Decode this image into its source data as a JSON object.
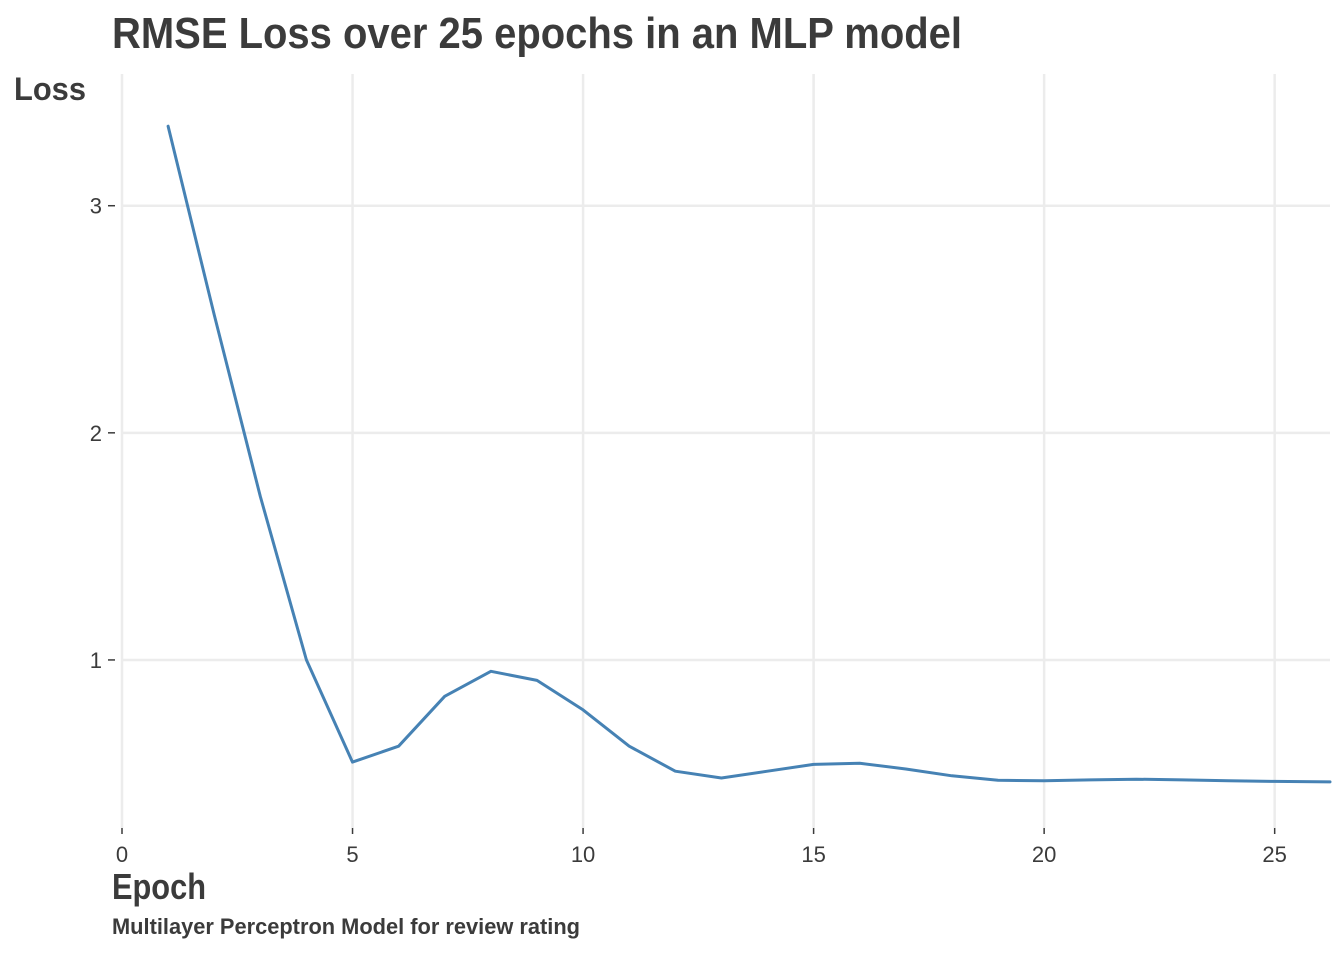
{
  "chart_data": {
    "type": "line",
    "title": "RMSE Loss over 25 epochs in an MLP model",
    "xlabel": "Epoch",
    "ylabel": "Loss",
    "caption": "Multilayer Perceptron Model for review rating",
    "xlim": [
      0,
      26.2
    ],
    "ylim": [
      0.26,
      3.58
    ],
    "x_ticks": [
      0,
      5,
      10,
      15,
      20,
      25
    ],
    "y_ticks": [
      1,
      2,
      3
    ],
    "grid": true,
    "line_color": "#4682b4",
    "grid_color": "#ececec",
    "text_color": "#3b3b3b",
    "series": [
      {
        "x": [
          1,
          2,
          3,
          4,
          5,
          6,
          7,
          8,
          9,
          10,
          11,
          12,
          13,
          14,
          15,
          16,
          17,
          18,
          19,
          20,
          21,
          22,
          23,
          24,
          25,
          26.2
        ],
        "values": [
          3.35,
          2.52,
          1.72,
          1.0,
          0.55,
          0.62,
          0.84,
          0.95,
          0.91,
          0.78,
          0.62,
          0.51,
          0.48,
          0.51,
          0.54,
          0.545,
          0.52,
          0.49,
          0.47,
          0.468,
          0.472,
          0.475,
          0.472,
          0.468,
          0.465,
          0.463
        ]
      }
    ]
  }
}
